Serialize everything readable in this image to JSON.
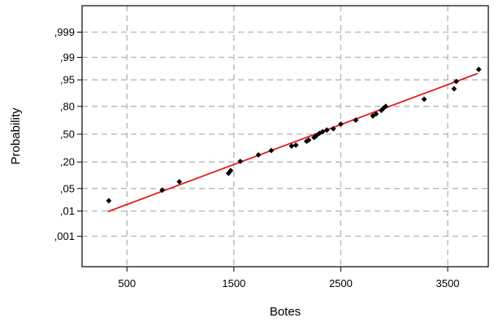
{
  "chart_data": {
    "type": "scatter",
    "title": "",
    "xlabel": "Botes",
    "ylabel": "Probability",
    "xlim": [
      80,
      3880
    ],
    "x_ticks": [
      500,
      1500,
      2500,
      3500
    ],
    "x_tick_labels": [
      "500",
      "1500",
      "2500",
      "3500"
    ],
    "y_ticks": [
      0.001,
      0.01,
      0.05,
      0.2,
      0.5,
      0.8,
      0.95,
      0.99,
      0.999
    ],
    "y_tick_labels": [
      ",001",
      ",01",
      ",05",
      ",20",
      ",50",
      ",80",
      ",95",
      ",99",
      ",999"
    ],
    "y_scale": "normal-probability",
    "ylim": [
      3e-05,
      0.99995
    ],
    "grid": true,
    "points": [
      {
        "x": 330,
        "y": 0.022
      },
      {
        "x": 830,
        "y": 0.045
      },
      {
        "x": 990,
        "y": 0.075
      },
      {
        "x": 1450,
        "y": 0.118
      },
      {
        "x": 1470,
        "y": 0.135
      },
      {
        "x": 1560,
        "y": 0.205
      },
      {
        "x": 1730,
        "y": 0.265
      },
      {
        "x": 1850,
        "y": 0.31
      },
      {
        "x": 2040,
        "y": 0.36
      },
      {
        "x": 2080,
        "y": 0.37
      },
      {
        "x": 2180,
        "y": 0.415
      },
      {
        "x": 2200,
        "y": 0.43
      },
      {
        "x": 2250,
        "y": 0.46
      },
      {
        "x": 2270,
        "y": 0.48
      },
      {
        "x": 2300,
        "y": 0.51
      },
      {
        "x": 2330,
        "y": 0.53
      },
      {
        "x": 2370,
        "y": 0.55
      },
      {
        "x": 2430,
        "y": 0.565
      },
      {
        "x": 2500,
        "y": 0.62
      },
      {
        "x": 2640,
        "y": 0.665
      },
      {
        "x": 2800,
        "y": 0.71
      },
      {
        "x": 2830,
        "y": 0.73
      },
      {
        "x": 2880,
        "y": 0.765
      },
      {
        "x": 2900,
        "y": 0.785
      },
      {
        "x": 2920,
        "y": 0.8
      },
      {
        "x": 3280,
        "y": 0.855
      },
      {
        "x": 3560,
        "y": 0.915
      },
      {
        "x": 3580,
        "y": 0.945
      },
      {
        "x": 3790,
        "y": 0.975
      }
    ],
    "fit_line": {
      "x": [
        320,
        3780
      ],
      "y": [
        0.0095,
        0.967
      ]
    },
    "colors": {
      "points": "#000000",
      "fit_line": "#e41a1c",
      "grid": "#b4b4b4",
      "frame": "#000000"
    }
  }
}
